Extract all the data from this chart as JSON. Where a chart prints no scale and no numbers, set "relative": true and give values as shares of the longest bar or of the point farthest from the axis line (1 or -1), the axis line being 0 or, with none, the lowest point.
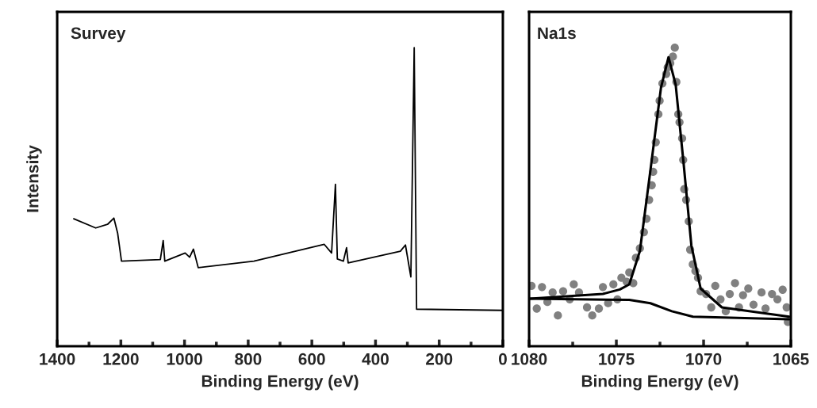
{
  "chart_data": [
    {
      "type": "line",
      "title": "Survey",
      "xlabel": "Binding Energy (eV)",
      "ylabel": "Intensity",
      "relative": true,
      "tick_labels": "x",
      "color": "#000000",
      "xlim": [
        1400,
        0
      ],
      "xticks": [
        0,
        {
          "value": 100,
          "label": null
        },
        200,
        {
          "value": 300,
          "label": null
        },
        400,
        {
          "value": 500,
          "label": null
        },
        600,
        {
          "value": 700,
          "label": null
        },
        800,
        {
          "value": 900,
          "label": null
        },
        1000,
        {
          "value": 1100,
          "label": null
        },
        1200,
        {
          "value": 1300,
          "label": null
        },
        1400
      ],
      "x": [
        1348,
        1279,
        1242,
        1222,
        1210,
        1198,
        1076,
        1067,
        1062,
        998,
        984,
        972,
        957,
        782,
        561,
        538,
        526,
        520,
        501,
        491,
        486,
        322,
        306,
        289,
        278.5,
        271,
        0
      ],
      "values": [
        0.427,
        0.396,
        0.408,
        0.429,
        0.378,
        0.285,
        0.29,
        0.354,
        0.285,
        0.312,
        0.298,
        0.325,
        0.263,
        0.285,
        0.341,
        0.312,
        0.542,
        0.292,
        0.285,
        0.33,
        0.279,
        0.318,
        0.339,
        0.232,
        1.0,
        0.124,
        0.12
      ]
    },
    {
      "type": "line",
      "title": "Na1s",
      "xlabel": "Binding Energy (eV)",
      "relative": true,
      "tick_labels": "x",
      "xlim": [
        1080,
        1065
      ],
      "xticks": [
        1065,
        {
          "value": 1067.5,
          "label": null
        },
        1070,
        {
          "value": 1072.5,
          "label": null
        },
        1075,
        {
          "value": 1077.5,
          "label": null
        },
        1080
      ],
      "series": [
        {
          "type": "scatter",
          "marker": "circle",
          "color": "#808080",
          "x": [
            1079.86,
            1079.56,
            1079.26,
            1078.95,
            1078.65,
            1078.35,
            1078.05,
            1077.67,
            1077.44,
            1077.14,
            1076.68,
            1076.38,
            1076.0,
            1075.77,
            1075.47,
            1075.17,
            1074.94,
            1074.71,
            1074.41,
            1074.26,
            1074.03,
            1073.88,
            1073.65,
            1073.42,
            1073.27,
            1073.12,
            1072.97,
            1072.89,
            1072.82,
            1072.74,
            1072.59,
            1072.52,
            1072.36,
            1072.14,
            1072.06,
            1071.91,
            1071.76,
            1071.65,
            1071.56,
            1071.45,
            1071.38,
            1071.23,
            1071.17,
            1071.11,
            1071.0,
            1070.85,
            1070.77,
            1070.62,
            1070.47,
            1070.32,
            1070.17,
            1069.86,
            1069.56,
            1069.33,
            1069.03,
            1068.73,
            1068.5,
            1068.2,
            1067.97,
            1067.74,
            1067.44,
            1067.14,
            1066.68,
            1066.45,
            1066.08,
            1065.77,
            1065.47,
            1065.24,
            1065.17
          ],
          "values": [
            0.202,
            0.126,
            0.198,
            0.148,
            0.18,
            0.103,
            0.184,
            0.157,
            0.207,
            0.18,
            0.13,
            0.103,
            0.126,
            0.198,
            0.144,
            0.207,
            0.157,
            0.229,
            0.216,
            0.247,
            0.211,
            0.296,
            0.328,
            0.382,
            0.427,
            0.49,
            0.539,
            0.584,
            0.624,
            0.683,
            0.777,
            0.822,
            0.88,
            0.912,
            0.934,
            0.948,
            0.97,
            1.0,
            0.885,
            0.777,
            0.75,
            0.696,
            0.624,
            0.526,
            0.49,
            0.418,
            0.323,
            0.274,
            0.252,
            0.229,
            0.184,
            0.175,
            0.13,
            0.202,
            0.157,
            0.117,
            0.175,
            0.211,
            0.13,
            0.171,
            0.193,
            0.139,
            0.18,
            0.126,
            0.175,
            0.157,
            0.189,
            0.13,
            0.081
          ]
        },
        {
          "type": "line",
          "color": "#000000",
          "x": [
            1079.94,
            1075.77,
            1074.8,
            1074.26,
            1073.65,
            1073.05,
            1072.44,
            1072.01,
            1071.6,
            1071.15,
            1070.7,
            1070.17,
            1068.95,
            1065.09
          ],
          "values": [
            0.159,
            0.175,
            0.19,
            0.207,
            0.319,
            0.588,
            0.867,
            0.968,
            0.876,
            0.615,
            0.337,
            0.193,
            0.13,
            0.099
          ]
        },
        {
          "type": "line",
          "color": "#000000",
          "x": [
            1079.94,
            1074.26,
            1073.05,
            1071.82,
            1070.61,
            1065.09
          ],
          "values": [
            0.159,
            0.155,
            0.144,
            0.117,
            0.099,
            0.09
          ]
        }
      ]
    }
  ]
}
